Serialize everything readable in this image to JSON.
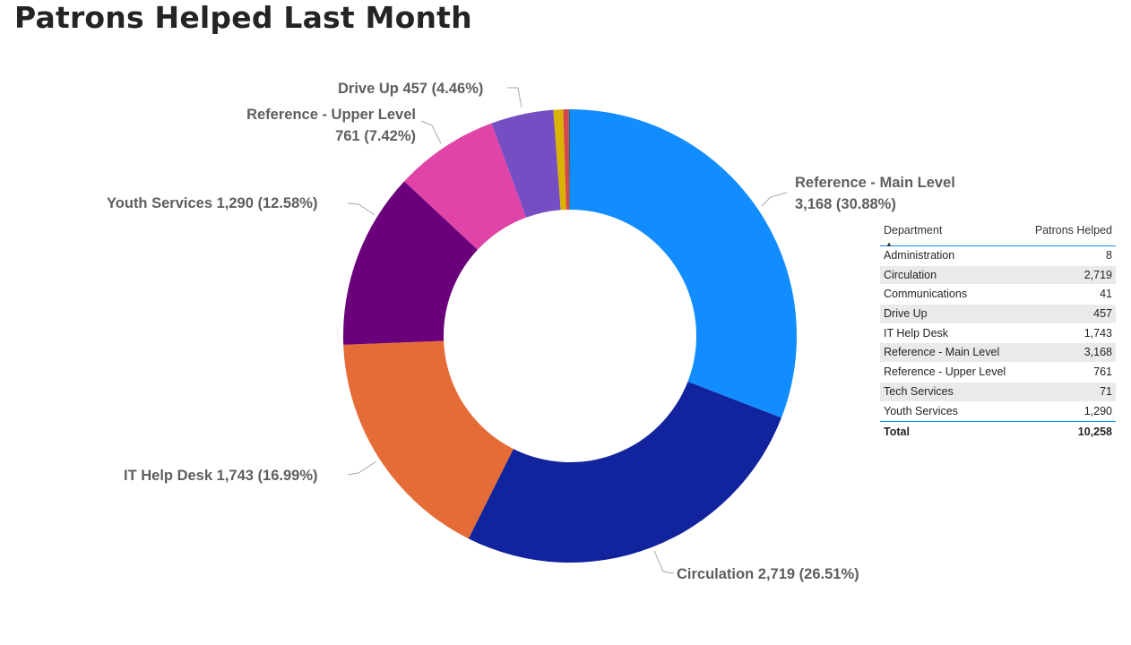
{
  "title": "Patrons Helped Last Month",
  "chart_data": {
    "type": "pie",
    "subtype": "donut",
    "title": "Patrons Helped Last Month",
    "slices": [
      {
        "name": "Reference - Main Level",
        "value": 3168,
        "percent": "30.88%",
        "label_value": "3,168",
        "color": "#118DFF"
      },
      {
        "name": "Circulation",
        "value": 2719,
        "percent": "26.51%",
        "label_value": "2,719",
        "color": "#12239E"
      },
      {
        "name": "IT Help Desk",
        "value": 1743,
        "percent": "16.99%",
        "label_value": "1,743",
        "color": "#E66C37"
      },
      {
        "name": "Youth Services",
        "value": 1290,
        "percent": "12.58%",
        "label_value": "1,290",
        "color": "#6B007B"
      },
      {
        "name": "Reference - Upper Level",
        "value": 761,
        "percent": "7.42%",
        "label_value": "761",
        "color": "#E044A7"
      },
      {
        "name": "Drive Up",
        "value": 457,
        "percent": "4.46%",
        "label_value": "457",
        "color": "#744EC2"
      },
      {
        "name": "Tech Services",
        "value": 71,
        "percent": "0.69%",
        "label_value": "71",
        "color": "#D9B300"
      },
      {
        "name": "Communications",
        "value": 41,
        "percent": "0.40%",
        "label_value": "41",
        "color": "#D64550"
      },
      {
        "name": "Administration",
        "value": 8,
        "percent": "0.08%",
        "label_value": "8",
        "color": "#197278"
      }
    ]
  },
  "table": {
    "headers": [
      "Department",
      "Patrons Helped"
    ],
    "rows": [
      [
        "Administration",
        "8"
      ],
      [
        "Circulation",
        "2,719"
      ],
      [
        "Communications",
        "41"
      ],
      [
        "Drive Up",
        "457"
      ],
      [
        "IT Help Desk",
        "1,743"
      ],
      [
        "Reference - Main Level",
        "3,168"
      ],
      [
        "Reference - Upper Level",
        "761"
      ],
      [
        "Tech Services",
        "71"
      ],
      [
        "Youth Services",
        "1,290"
      ]
    ],
    "total_label": "Total",
    "total_value": "10,258"
  }
}
